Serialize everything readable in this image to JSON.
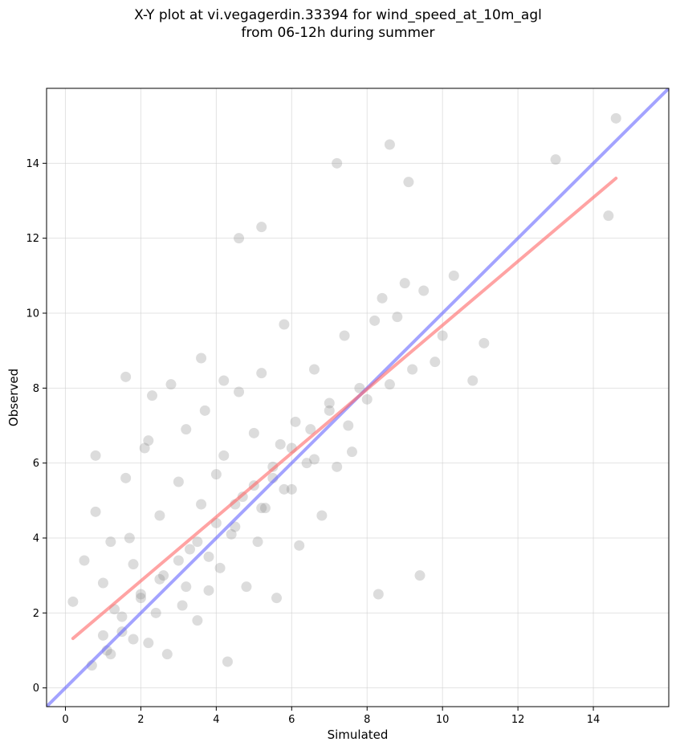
{
  "chart_data": {
    "type": "scatter",
    "title_line1": "X-Y plot at vi.vegagerdin.33394 for wind_speed_at_10m_agl",
    "title_line2": "from 06-12h during summer",
    "xlabel": "Simulated",
    "ylabel": "Observed",
    "xlim": [
      -0.5,
      16.0
    ],
    "ylim": [
      -0.5,
      16.0
    ],
    "xticks": [
      0,
      2,
      4,
      6,
      8,
      10,
      12,
      14
    ],
    "yticks": [
      0,
      2,
      4,
      6,
      8,
      10,
      12,
      14
    ],
    "grid": true,
    "point_color": "#808080",
    "identity_line": {
      "x": [
        -0.5,
        16.0
      ],
      "y": [
        -0.5,
        16.0
      ],
      "color": "#6666ff"
    },
    "fit_line": {
      "x": [
        0.2,
        14.6
      ],
      "y": [
        1.32,
        13.6
      ],
      "color": "#ff6666"
    },
    "sample_points": {
      "x": [
        0.2,
        0.5,
        0.7,
        0.8,
        1.0,
        1.1,
        1.2,
        1.3,
        1.5,
        1.6,
        1.7,
        1.8,
        2.0,
        2.1,
        2.2,
        2.3,
        2.5,
        2.6,
        2.7,
        2.8,
        3.0,
        3.1,
        3.2,
        3.3,
        3.5,
        3.6,
        3.7,
        3.8,
        4.0,
        4.1,
        4.2,
        4.3,
        4.5,
        4.6,
        4.7,
        4.8,
        5.0,
        5.1,
        5.2,
        5.3,
        5.5,
        5.6,
        5.7,
        5.8,
        6.0,
        6.1,
        6.2,
        6.4,
        6.6,
        6.8,
        7.0,
        7.2,
        7.4,
        7.6,
        7.8,
        8.0,
        8.2,
        8.4,
        8.6,
        8.8,
        9.0,
        9.2,
        9.5,
        9.8,
        10.0,
        10.3,
        10.8,
        11.1,
        13.0,
        14.4,
        14.6,
        1.0,
        1.5,
        2.0,
        2.5,
        3.0,
        3.5,
        4.0,
        4.5,
        5.0,
        5.5,
        6.0,
        6.5,
        7.0,
        1.2,
        1.8,
        2.4,
        3.2,
        3.8,
        4.4,
        5.2,
        5.8,
        6.6,
        7.5,
        8.3,
        9.4,
        7.2,
        8.6,
        9.1,
        4.6,
        5.2,
        0.8,
        1.6,
        2.2,
        3.6,
        4.2
      ],
      "y": [
        2.3,
        3.4,
        0.6,
        4.7,
        2.8,
        1.0,
        3.9,
        2.1,
        1.5,
        8.3,
        4.0,
        3.3,
        2.5,
        6.4,
        1.2,
        7.8,
        4.6,
        3.0,
        0.9,
        8.1,
        5.5,
        2.2,
        6.9,
        3.7,
        1.8,
        4.9,
        7.4,
        2.6,
        5.7,
        3.2,
        6.2,
        0.7,
        4.3,
        7.9,
        5.1,
        2.7,
        6.8,
        3.9,
        8.4,
        4.8,
        5.6,
        2.4,
        6.5,
        9.7,
        5.3,
        7.1,
        3.8,
        6.0,
        8.5,
        4.6,
        7.6,
        5.9,
        9.4,
        6.3,
        8.0,
        7.7,
        9.8,
        10.4,
        8.1,
        9.9,
        10.8,
        8.5,
        10.6,
        8.7,
        9.4,
        11.0,
        8.2,
        9.2,
        14.1,
        12.6,
        15.2,
        1.4,
        1.9,
        2.4,
        2.9,
        3.4,
        3.9,
        4.4,
        4.9,
        5.4,
        5.9,
        6.4,
        6.9,
        7.4,
        0.9,
        1.3,
        2.0,
        2.7,
        3.5,
        4.1,
        4.8,
        5.3,
        6.1,
        7.0,
        2.5,
        3.0,
        14.0,
        14.5,
        13.5,
        12.0,
        12.3,
        6.2,
        5.6,
        6.6,
        8.8,
        8.2
      ]
    }
  }
}
